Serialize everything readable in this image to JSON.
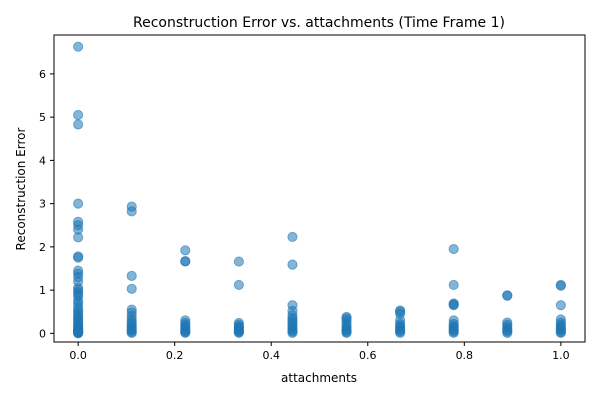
{
  "chart_data": {
    "type": "scatter",
    "title": "Reconstruction Error vs. attachments (Time Frame 1)",
    "xlabel": "attachments",
    "ylabel": "Reconstruction Error",
    "xlim": [
      -0.05,
      1.05
    ],
    "ylim": [
      -0.2,
      6.9
    ],
    "xticks": [
      0.0,
      0.2,
      0.4,
      0.6,
      0.8,
      1.0
    ],
    "xtick_labels": [
      "0.0",
      "0.2",
      "0.4",
      "0.6",
      "0.8",
      "1.0"
    ],
    "yticks": [
      0,
      1,
      2,
      3,
      4,
      5,
      6
    ],
    "ytick_labels": [
      "0",
      "1",
      "2",
      "3",
      "4",
      "5",
      "6"
    ],
    "grid": false,
    "marker_color": "#1f77b4",
    "marker_alpha": 0.55,
    "series": [
      {
        "x": [
          0,
          0,
          0,
          0,
          0,
          0,
          0,
          0,
          0,
          0,
          0,
          0,
          0,
          0,
          0,
          0,
          0,
          0,
          0,
          0,
          0,
          0,
          0,
          0,
          0,
          0,
          0,
          0,
          0,
          0,
          0,
          0,
          0,
          0,
          0,
          0,
          0,
          0,
          0,
          0,
          0,
          0,
          0.111,
          0.111,
          0.111,
          0.111,
          0.111,
          0.111,
          0.111,
          0.111,
          0.111,
          0.111,
          0.111,
          0.111,
          0.111,
          0.111,
          0.111,
          0.111,
          0.222,
          0.222,
          0.222,
          0.222,
          0.222,
          0.222,
          0.222,
          0.222,
          0.222,
          0.222,
          0.222,
          0.222,
          0.333,
          0.333,
          0.333,
          0.333,
          0.333,
          0.333,
          0.333,
          0.333,
          0.333,
          0.333,
          0.333,
          0.444,
          0.444,
          0.444,
          0.444,
          0.444,
          0.444,
          0.444,
          0.444,
          0.444,
          0.444,
          0.444,
          0.444,
          0.444,
          0.444,
          0.556,
          0.556,
          0.556,
          0.556,
          0.556,
          0.556,
          0.556,
          0.556,
          0.556,
          0.556,
          0.667,
          0.667,
          0.667,
          0.667,
          0.667,
          0.667,
          0.667,
          0.667,
          0.667,
          0.667,
          0.667,
          0.778,
          0.778,
          0.778,
          0.778,
          0.778,
          0.778,
          0.778,
          0.778,
          0.778,
          0.778,
          0.778,
          0.778,
          0.778,
          0.889,
          0.889,
          0.889,
          0.889,
          0.889,
          0.889,
          0.889,
          0.889,
          0.889,
          1,
          1,
          1,
          1,
          1,
          1,
          1,
          1,
          1,
          1,
          1,
          1
        ],
        "y": [
          6.63,
          5.05,
          4.83,
          3.0,
          2.58,
          2.5,
          2.4,
          2.22,
          1.78,
          1.75,
          1.45,
          1.38,
          1.3,
          1.2,
          1.05,
          1.0,
          0.95,
          0.9,
          0.85,
          0.75,
          0.7,
          0.62,
          0.55,
          0.5,
          0.45,
          0.4,
          0.36,
          0.32,
          0.28,
          0.24,
          0.2,
          0.17,
          0.14,
          0.11,
          0.09,
          0.07,
          0.05,
          0.04,
          0.03,
          0.02,
          0.01,
          0.0,
          2.93,
          2.82,
          1.33,
          1.03,
          0.55,
          0.48,
          0.4,
          0.33,
          0.27,
          0.22,
          0.17,
          0.13,
          0.09,
          0.06,
          0.03,
          0.01,
          1.92,
          1.67,
          1.66,
          0.3,
          0.24,
          0.2,
          0.16,
          0.12,
          0.08,
          0.05,
          0.03,
          0.01,
          1.66,
          1.12,
          0.24,
          0.2,
          0.16,
          0.13,
          0.1,
          0.07,
          0.05,
          0.03,
          0.01,
          2.23,
          1.59,
          0.65,
          0.52,
          0.42,
          0.35,
          0.3,
          0.25,
          0.2,
          0.15,
          0.11,
          0.07,
          0.04,
          0.01,
          0.38,
          0.35,
          0.3,
          0.24,
          0.18,
          0.13,
          0.09,
          0.06,
          0.03,
          0.01,
          0.53,
          0.5,
          0.45,
          0.3,
          0.22,
          0.18,
          0.14,
          0.1,
          0.07,
          0.04,
          0.01,
          1.95,
          1.12,
          0.69,
          0.67,
          0.65,
          0.3,
          0.22,
          0.18,
          0.14,
          0.1,
          0.07,
          0.04,
          0.01,
          0.88,
          0.87,
          0.25,
          0.2,
          0.15,
          0.11,
          0.07,
          0.04,
          0.01,
          1.12,
          1.1,
          0.65,
          0.32,
          0.25,
          0.2,
          0.16,
          0.12,
          0.09,
          0.06,
          0.03,
          0.01
        ]
      }
    ]
  }
}
